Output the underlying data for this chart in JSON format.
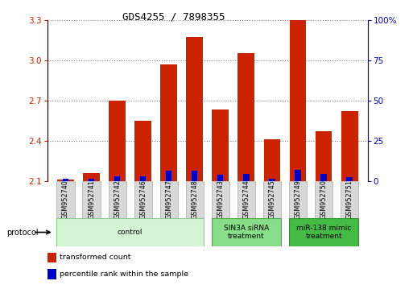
{
  "title": "GDS4255 / 7898355",
  "samples": [
    "GSM952740",
    "GSM952741",
    "GSM952742",
    "GSM952746",
    "GSM952747",
    "GSM952748",
    "GSM952743",
    "GSM952744",
    "GSM952745",
    "GSM952749",
    "GSM952750",
    "GSM952751"
  ],
  "red_values": [
    2.11,
    2.16,
    2.7,
    2.55,
    2.97,
    3.17,
    2.63,
    3.05,
    2.41,
    3.3,
    2.47,
    2.62
  ],
  "blue_values": [
    2.115,
    2.115,
    2.135,
    2.135,
    2.175,
    2.175,
    2.145,
    2.155,
    2.115,
    2.185,
    2.155,
    2.13
  ],
  "baseline": 2.1,
  "ylim_left": [
    2.1,
    3.3
  ],
  "yticks_left": [
    2.1,
    2.4,
    2.7,
    3.0,
    3.3
  ],
  "ylim_right": [
    0,
    100
  ],
  "yticks_right": [
    0,
    25,
    50,
    75,
    100
  ],
  "yticklabels_right": [
    "0",
    "25",
    "50",
    "75",
    "100%"
  ],
  "bar_width": 0.65,
  "red_color": "#cc2200",
  "blue_color": "#0000cc",
  "groups": [
    {
      "label": "control",
      "start": 0,
      "end": 5,
      "color": "#d4f5d4",
      "edge_color": "#88cc88"
    },
    {
      "label": "SIN3A siRNA\ntreatment",
      "start": 6,
      "end": 8,
      "color": "#88dd88",
      "edge_color": "#44aa44"
    },
    {
      "label": "miR-138 mimic\ntreatment",
      "start": 9,
      "end": 11,
      "color": "#44bb44",
      "edge_color": "#229922"
    }
  ],
  "protocol_label": "protocol",
  "legend_items": [
    {
      "label": "transformed count",
      "color": "#cc2200"
    },
    {
      "label": "percentile rank within the sample",
      "color": "#0000cc"
    }
  ],
  "tick_color_left": "#cc2200",
  "tick_color_right": "#0000cc",
  "grid_color": "#000000",
  "grid_alpha": 0.5,
  "sample_box_color": "#d8d8d8",
  "sample_box_edge": "#aaaaaa"
}
